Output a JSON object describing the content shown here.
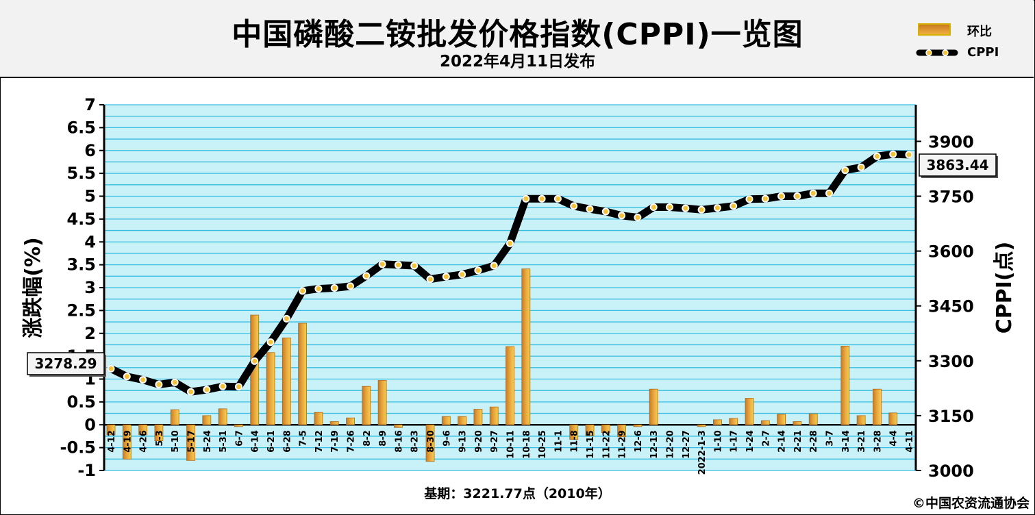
{
  "header": {
    "title": "中国磷酸二铵批发价格指数(CPPI)一览图",
    "subtitle": "2022年4月11日发布"
  },
  "legend": {
    "bar_label": "环比",
    "line_label": "CPPI"
  },
  "footer": {
    "base": "基期：3221.77点（2010年）",
    "copyright": "©中国农资流通协会"
  },
  "colors": {
    "plot_bg": "#c9f1f8",
    "grid": "#38bde0",
    "bar": "#e3a33c",
    "line": "#000000",
    "marker": "#f2c23c"
  },
  "chart_data": {
    "type": "bar",
    "categories": [
      "4-12",
      "4-19",
      "4-26",
      "5-3",
      "5-10",
      "5-17",
      "5-24",
      "5-31",
      "6-7",
      "6-14",
      "6-21",
      "6-28",
      "7-5",
      "7-12",
      "7-19",
      "7-26",
      "8-2",
      "8-9",
      "8-16",
      "8-23",
      "8-30",
      "9-6",
      "9-13",
      "9-20",
      "9-27",
      "10-11",
      "10-18",
      "10-25",
      "11-1",
      "11-8",
      "11-15",
      "11-22",
      "11-29",
      "12-6",
      "12-13",
      "12-20",
      "12-27",
      "2022-1-3",
      "1-10",
      "1-17",
      "1-24",
      "2-7",
      "2-14",
      "2-21",
      "2-28",
      "3-7",
      "3-14",
      "3-21",
      "3-28",
      "4-4",
      "4-11"
    ],
    "series": [
      {
        "name": "环比",
        "type": "bar",
        "axis": "left",
        "values": [
          -0.22,
          -0.75,
          -0.22,
          -0.35,
          0.33,
          -0.78,
          0.2,
          0.35,
          -0.04,
          2.4,
          1.58,
          1.9,
          2.22,
          0.27,
          0.07,
          0.15,
          0.84,
          0.97,
          -0.06,
          0.0,
          -0.8,
          0.18,
          0.18,
          0.34,
          0.39,
          1.71,
          3.41,
          0.0,
          0.0,
          -0.32,
          -0.24,
          -0.17,
          -0.26,
          -0.04,
          0.78,
          0.0,
          0.0,
          -0.04,
          0.11,
          0.14,
          0.58,
          0.09,
          0.23,
          0.07,
          0.24,
          0.0,
          1.72,
          0.2,
          0.78,
          0.26,
          0.0
        ]
      },
      {
        "name": "CPPI",
        "type": "line",
        "axis": "right",
        "values": [
          3278.29,
          3257,
          3248,
          3235,
          3241,
          3215,
          3221,
          3230,
          3229,
          3299,
          3351,
          3415,
          3491,
          3497,
          3499,
          3504,
          3532,
          3564,
          3562,
          3560,
          3523,
          3530,
          3536,
          3547,
          3560,
          3621,
          3743,
          3743,
          3743,
          3723,
          3715,
          3708,
          3697,
          3692,
          3720,
          3720,
          3717,
          3713,
          3718,
          3723,
          3742,
          3743,
          3750,
          3750,
          3758,
          3758,
          3821,
          3829,
          3859,
          3865,
          3863.44
        ]
      }
    ],
    "y_left": {
      "label": "涨跌幅(%)",
      "min": -1,
      "max": 7,
      "ticks": [
        "-1",
        "-0.5",
        "0",
        "0.5",
        "1",
        "1.5",
        "2",
        "2.5",
        "3",
        "3.5",
        "4",
        "4.5",
        "5",
        "5.5",
        "6",
        "6.5",
        "7"
      ]
    },
    "y_right": {
      "label": "CPPI(点)",
      "min": 3000,
      "max": 4000,
      "ticks": [
        "3000",
        "3150",
        "3300",
        "3450",
        "3600",
        "3750",
        "3900"
      ]
    },
    "callouts": {
      "start": "3278.29",
      "end": "3863.44"
    },
    "grid": true,
    "legend_position": "top-right"
  }
}
